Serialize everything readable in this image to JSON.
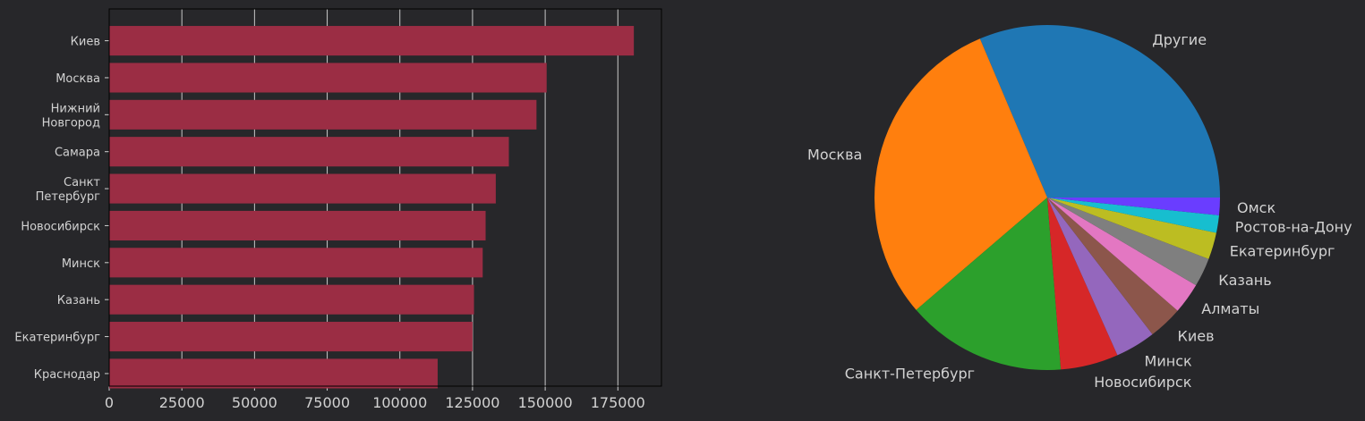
{
  "colors": {
    "background": "#27272a",
    "bar": "#9b2d44",
    "grid": "#c8c8c8",
    "text": "#d2d2d2",
    "axis": "#000000"
  },
  "chart_data": [
    {
      "type": "bar",
      "orientation": "horizontal",
      "categories": [
        "Киев",
        "Москва",
        "Нижний Новгород",
        "Самара",
        "Санкт Петербург",
        "Новосибирск",
        "Минск",
        "Казань",
        "Екатеринбург",
        "Краснодар"
      ],
      "values": [
        180500,
        150500,
        147000,
        137500,
        133000,
        129500,
        128500,
        125500,
        125000,
        113000
      ],
      "xlim": [
        0,
        190000
      ],
      "xticks": [
        0,
        25000,
        50000,
        75000,
        100000,
        125000,
        150000,
        175000
      ],
      "grid": "x"
    },
    {
      "type": "pie",
      "labels": [
        "Другие",
        "Москва",
        "Санкт-Петербург",
        "Новосибирск",
        "Минск",
        "Киев",
        "Алматы",
        "Казань",
        "Екатеринбург",
        "Ростов-на-Дону",
        "Омск"
      ],
      "values": [
        32.5,
        31.0,
        15.5,
        5.6,
        3.9,
        3.3,
        3.0,
        2.8,
        2.6,
        1.7,
        1.7
      ],
      "colors": [
        "#1f77b4",
        "#ff7f0e",
        "#2ca02c",
        "#d62728",
        "#9467bd",
        "#8c564b",
        "#e377c2",
        "#7f7f7f",
        "#bcbd22",
        "#17becf",
        "#6a3dff"
      ],
      "startangle": 0
    }
  ]
}
